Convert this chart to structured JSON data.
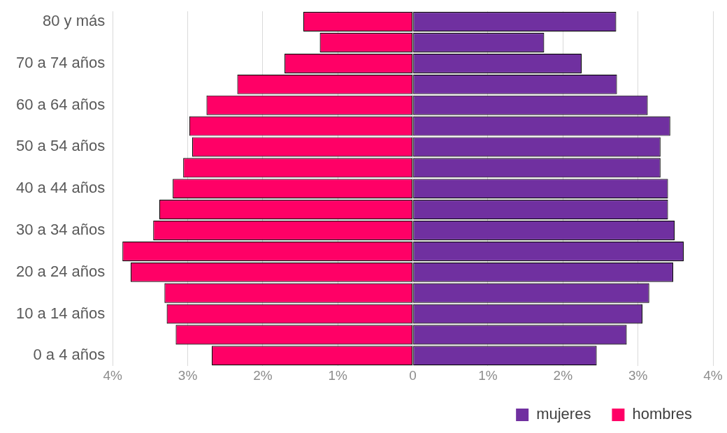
{
  "chart_data": {
    "type": "bar",
    "orientation": "horizontal",
    "stacked": true,
    "categories": [
      "80 y más",
      null,
      "70 a 74 años",
      null,
      "60 a 64 años",
      null,
      "50 a 54 años",
      null,
      "40 a 44 años",
      null,
      "30 a 34 años",
      null,
      "20 a 24 años",
      null,
      "10 a 14 años",
      null,
      "0 a 4 años"
    ],
    "series": [
      {
        "name": "mujeres",
        "color": "#7030a0",
        "values": [
          2.71,
          1.75,
          2.25,
          2.72,
          3.13,
          3.43,
          3.3,
          3.3,
          3.4,
          3.4,
          3.49,
          3.61,
          3.47,
          3.15,
          3.06,
          2.85,
          2.45
        ]
      },
      {
        "name": "hombres",
        "color": "#ff0066",
        "values": [
          -1.46,
          -1.24,
          -1.71,
          -2.34,
          -2.75,
          -2.98,
          -2.94,
          -3.06,
          -3.2,
          -3.38,
          -3.46,
          -3.87,
          -3.76,
          -3.31,
          -3.28,
          -3.16,
          -2.68
        ]
      }
    ],
    "xlim": [
      -4,
      4
    ],
    "xticks": [
      {
        "value": -4,
        "label": "4%"
      },
      {
        "value": -3,
        "label": "3%"
      },
      {
        "value": -2,
        "label": "2%"
      },
      {
        "value": -1,
        "label": "1%"
      },
      0,
      {
        "value": 1,
        "label": "1%"
      },
      {
        "value": 2,
        "label": "2%"
      },
      {
        "value": 3,
        "label": "3%"
      },
      {
        "value": 4,
        "label": "4%"
      }
    ],
    "grid": "x",
    "legend": "bottom right"
  }
}
